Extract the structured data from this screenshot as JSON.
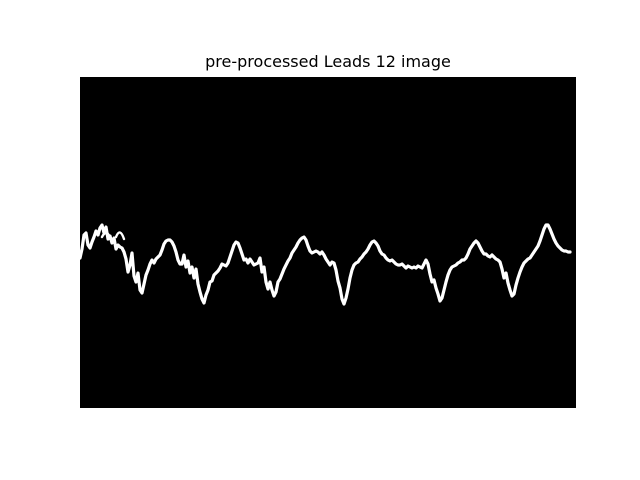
{
  "figure": {
    "title": "pre-processed Leads 12 image"
  },
  "image": {
    "background_color": "#000000",
    "trace_color": "#ffffff",
    "content": "binarized ECG lead trace"
  }
}
